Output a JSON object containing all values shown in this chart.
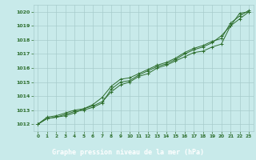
{
  "title": "Graphe pression niveau de la mer (hPa)",
  "bg_color": "#c8eaea",
  "plot_bg": "#c8eaea",
  "grid_color": "#a8cccc",
  "line_color": "#2d6e2d",
  "title_bg": "#2d6e2d",
  "title_fg": "#ffffff",
  "tick_color": "#2d6e2d",
  "xlim": [
    -0.5,
    23.5
  ],
  "ylim": [
    1011.5,
    1020.5
  ],
  "xticks": [
    0,
    1,
    2,
    3,
    4,
    5,
    6,
    7,
    8,
    9,
    10,
    11,
    12,
    13,
    14,
    15,
    16,
    17,
    18,
    19,
    20,
    21,
    22,
    23
  ],
  "yticks": [
    1012,
    1013,
    1014,
    1015,
    1016,
    1017,
    1018,
    1019,
    1020
  ],
  "series1": [
    1012.0,
    1012.5,
    1012.6,
    1012.8,
    1013.0,
    1013.1,
    1013.3,
    1013.6,
    1014.3,
    1014.8,
    1015.0,
    1015.4,
    1015.6,
    1016.0,
    1016.2,
    1016.5,
    1016.8,
    1017.1,
    1017.2,
    1017.5,
    1017.7,
    1019.0,
    1019.9,
    1020.0
  ],
  "series2": [
    1012.0,
    1012.4,
    1012.5,
    1012.7,
    1012.9,
    1013.0,
    1013.2,
    1013.5,
    1014.5,
    1015.0,
    1015.1,
    1015.5,
    1015.8,
    1016.1,
    1016.3,
    1016.6,
    1017.0,
    1017.3,
    1017.5,
    1017.8,
    1018.3,
    1019.0,
    1019.5,
    1020.0
  ],
  "series3": [
    1012.0,
    1012.4,
    1012.5,
    1012.6,
    1012.8,
    1013.1,
    1013.4,
    1013.9,
    1014.7,
    1015.2,
    1015.3,
    1015.6,
    1015.9,
    1016.2,
    1016.4,
    1016.7,
    1017.1,
    1017.4,
    1017.6,
    1017.9,
    1018.1,
    1019.2,
    1019.7,
    1020.1
  ]
}
